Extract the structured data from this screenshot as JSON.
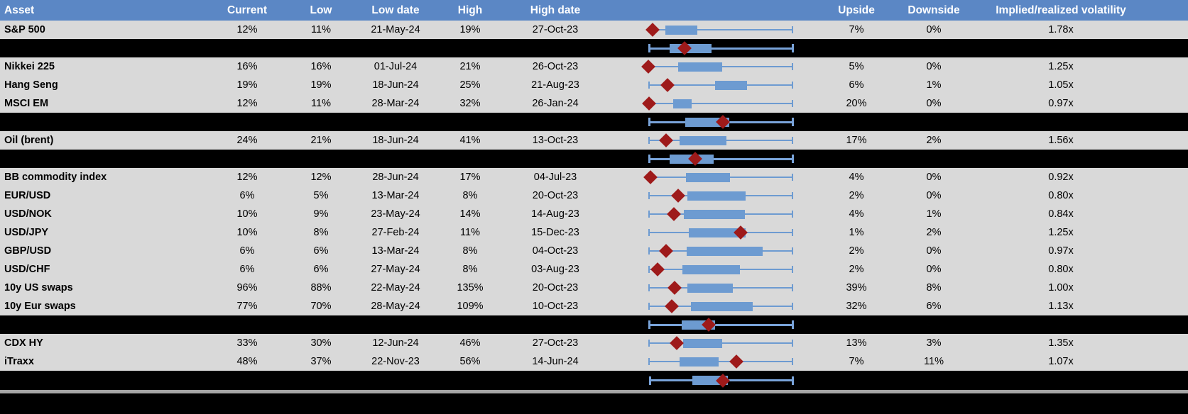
{
  "header": {
    "asset": "Asset",
    "current": "Current",
    "low": "Low",
    "low_date": "Low date",
    "high": "High",
    "high_date": "High date",
    "upside": "Upside",
    "downside": "Downside",
    "implied": "Implied/realized volatility"
  },
  "colors": {
    "header_bg": "#5b87c5",
    "header_text": "#ffffff",
    "row_bg": "#d9d9d9",
    "separator_bg": "#000000",
    "rule_gray": "#a6a6a6",
    "box_fill": "#6d9bd1",
    "whisker": "#6d9bd1",
    "whisker_on_black": "#79a3d9",
    "marker": "#9e1a1a",
    "cell_text": "#000000"
  },
  "chart_data": {
    "type": "table",
    "note": "Volatility table with embedded horizontal box-whisker charts; red diamond marks current level; whisker spans the low-high range; positions are fractions 0-1 of the plot width. Black separator rows show aggregate box plots.",
    "columns": [
      "Asset",
      "Current",
      "Low",
      "Low date",
      "High",
      "High date",
      "Upside",
      "Downside",
      "Implied/realized volatility"
    ],
    "rows": [
      {
        "kind": "data",
        "asset": "S&P 500",
        "current": "12%",
        "low": "11%",
        "low_date": "21-May-24",
        "high": "19%",
        "high_date": "27-Oct-23",
        "upside": "7%",
        "downside": "0%",
        "implied": "1.78x",
        "box": {
          "w_lo": 0.03,
          "w_hi": 1,
          "b_lo": 0.12,
          "b_hi": 0.34,
          "d": 0.03,
          "lcap": false
        }
      },
      {
        "kind": "sep",
        "box": {
          "w_lo": 0,
          "w_hi": 1,
          "b_lo": 0.147,
          "b_hi": 0.437,
          "d": 0.25,
          "lcap": true
        }
      },
      {
        "kind": "data",
        "asset": "Nikkei 225",
        "current": "16%",
        "low": "16%",
        "low_date": "01-Jul-24",
        "high": "21%",
        "high_date": "26-Oct-23",
        "upside": "5%",
        "downside": "0%",
        "implied": "1.25x",
        "box": {
          "w_lo": 0,
          "w_hi": 1,
          "b_lo": 0.206,
          "b_hi": 0.51,
          "d": 0.0,
          "lcap": false
        }
      },
      {
        "kind": "data",
        "asset": "Hang Seng",
        "current": "19%",
        "low": "19%",
        "low_date": "18-Jun-24",
        "high": "25%",
        "high_date": "21-Aug-23",
        "upside": "6%",
        "downside": "1%",
        "implied": "1.05x",
        "box": {
          "w_lo": 0,
          "w_hi": 1,
          "b_lo": 0.46,
          "b_hi": 0.68,
          "d": 0.132,
          "lcap": true
        }
      },
      {
        "kind": "data",
        "asset": "MSCI EM",
        "current": "12%",
        "low": "11%",
        "low_date": "28-Mar-24",
        "high": "32%",
        "high_date": "26-Jan-24",
        "upside": "20%",
        "downside": "0%",
        "implied": "0.97x",
        "box": {
          "w_lo": 0.005,
          "w_hi": 1,
          "b_lo": 0.17,
          "b_hi": 0.3,
          "d": 0.005,
          "lcap": false
        }
      },
      {
        "kind": "sep",
        "box": {
          "w_lo": 0,
          "w_hi": 1,
          "b_lo": 0.255,
          "b_hi": 0.56,
          "d": 0.515,
          "lcap": true
        }
      },
      {
        "kind": "data",
        "asset": "Oil (brent)",
        "current": "24%",
        "low": "21%",
        "low_date": "18-Jun-24",
        "high": "41%",
        "high_date": "13-Oct-23",
        "upside": "17%",
        "downside": "2%",
        "implied": "1.56x",
        "box": {
          "w_lo": 0,
          "w_hi": 1,
          "b_lo": 0.216,
          "b_hi": 0.54,
          "d": 0.123,
          "lcap": true
        }
      },
      {
        "kind": "sep",
        "box": {
          "w_lo": 0,
          "w_hi": 1,
          "b_lo": 0.147,
          "b_hi": 0.45,
          "d": 0.324,
          "lcap": true
        }
      },
      {
        "kind": "data",
        "asset": "BB commodity index",
        "current": "12%",
        "low": "12%",
        "low_date": "28-Jun-24",
        "high": "17%",
        "high_date": "04-Jul-23",
        "upside": "4%",
        "downside": "0%",
        "implied": "0.92x",
        "box": {
          "w_lo": 0.015,
          "w_hi": 1,
          "b_lo": 0.26,
          "b_hi": 0.565,
          "d": 0.015,
          "lcap": false
        }
      },
      {
        "kind": "data",
        "asset": "EUR/USD",
        "current": "6%",
        "low": "5%",
        "low_date": "13-Mar-24",
        "high": "8%",
        "high_date": "20-Oct-23",
        "upside": "2%",
        "downside": "0%",
        "implied": "0.80x",
        "box": {
          "w_lo": 0,
          "w_hi": 1,
          "b_lo": 0.27,
          "b_hi": 0.67,
          "d": 0.206,
          "lcap": true
        }
      },
      {
        "kind": "data",
        "asset": "USD/NOK",
        "current": "10%",
        "low": "9%",
        "low_date": "23-May-24",
        "high": "14%",
        "high_date": "14-Aug-23",
        "upside": "4%",
        "downside": "1%",
        "implied": "0.84x",
        "box": {
          "w_lo": 0,
          "w_hi": 1,
          "b_lo": 0.245,
          "b_hi": 0.665,
          "d": 0.176,
          "lcap": true
        }
      },
      {
        "kind": "data",
        "asset": "USD/JPY",
        "current": "10%",
        "low": "8%",
        "low_date": "27-Feb-24",
        "high": "11%",
        "high_date": "15-Dec-23",
        "upside": "1%",
        "downside": "2%",
        "implied": "1.25x",
        "box": {
          "w_lo": 0,
          "w_hi": 1,
          "b_lo": 0.28,
          "b_hi": 0.67,
          "d": 0.637,
          "lcap": true
        }
      },
      {
        "kind": "data",
        "asset": "GBP/USD",
        "current": "6%",
        "low": "6%",
        "low_date": "13-Mar-24",
        "high": "8%",
        "high_date": "04-Oct-23",
        "upside": "2%",
        "downside": "0%",
        "implied": "0.97x",
        "box": {
          "w_lo": 0,
          "w_hi": 1,
          "b_lo": 0.265,
          "b_hi": 0.79,
          "d": 0.123,
          "lcap": true
        }
      },
      {
        "kind": "data",
        "asset": "USD/CHF",
        "current": "6%",
        "low": "6%",
        "low_date": "27-May-24",
        "high": "8%",
        "high_date": "03-Aug-23",
        "upside": "2%",
        "downside": "0%",
        "implied": "0.80x",
        "box": {
          "w_lo": 0,
          "w_hi": 1,
          "b_lo": 0.235,
          "b_hi": 0.63,
          "d": 0.064,
          "lcap": true
        }
      },
      {
        "kind": "data",
        "asset": "10y US swaps",
        "current": "96%",
        "low": "88%",
        "low_date": "22-May-24",
        "high": "135%",
        "high_date": "20-Oct-23",
        "upside": "39%",
        "downside": "8%",
        "implied": "1.00x",
        "box": {
          "w_lo": 0,
          "w_hi": 1,
          "b_lo": 0.27,
          "b_hi": 0.585,
          "d": 0.181,
          "lcap": true
        }
      },
      {
        "kind": "data",
        "asset": "10y Eur swaps",
        "current": "77%",
        "low": "70%",
        "low_date": "28-May-24",
        "high": "109%",
        "high_date": "10-Oct-23",
        "upside": "32%",
        "downside": "6%",
        "implied": "1.13x",
        "box": {
          "w_lo": 0,
          "w_hi": 1,
          "b_lo": 0.295,
          "b_hi": 0.72,
          "d": 0.162,
          "lcap": true
        }
      },
      {
        "kind": "sep",
        "box": {
          "w_lo": 0,
          "w_hi": 1,
          "b_lo": 0.23,
          "b_hi": 0.46,
          "d": 0.417,
          "lcap": true
        }
      },
      {
        "kind": "data",
        "asset": "CDX HY",
        "current": "33%",
        "low": "30%",
        "low_date": "12-Jun-24",
        "high": "46%",
        "high_date": "27-Oct-23",
        "upside": "13%",
        "downside": "3%",
        "implied": "1.35x",
        "box": {
          "w_lo": 0,
          "w_hi": 1,
          "b_lo": 0.24,
          "b_hi": 0.51,
          "d": 0.196,
          "lcap": true
        }
      },
      {
        "kind": "data",
        "asset": "iTraxx",
        "current": "48%",
        "low": "37%",
        "low_date": "22-Nov-23",
        "high": "56%",
        "high_date": "14-Jun-24",
        "upside": "7%",
        "downside": "11%",
        "implied": "1.07x",
        "box": {
          "w_lo": 0,
          "w_hi": 1,
          "b_lo": 0.216,
          "b_hi": 0.485,
          "d": 0.608,
          "lcap": true
        }
      },
      {
        "kind": "sep",
        "box": {
          "w_lo": 0.005,
          "w_hi": 1,
          "b_lo": 0.305,
          "b_hi": 0.55,
          "d": 0.515,
          "lcap": true
        }
      },
      {
        "kind": "rule"
      },
      {
        "kind": "filler"
      }
    ]
  }
}
